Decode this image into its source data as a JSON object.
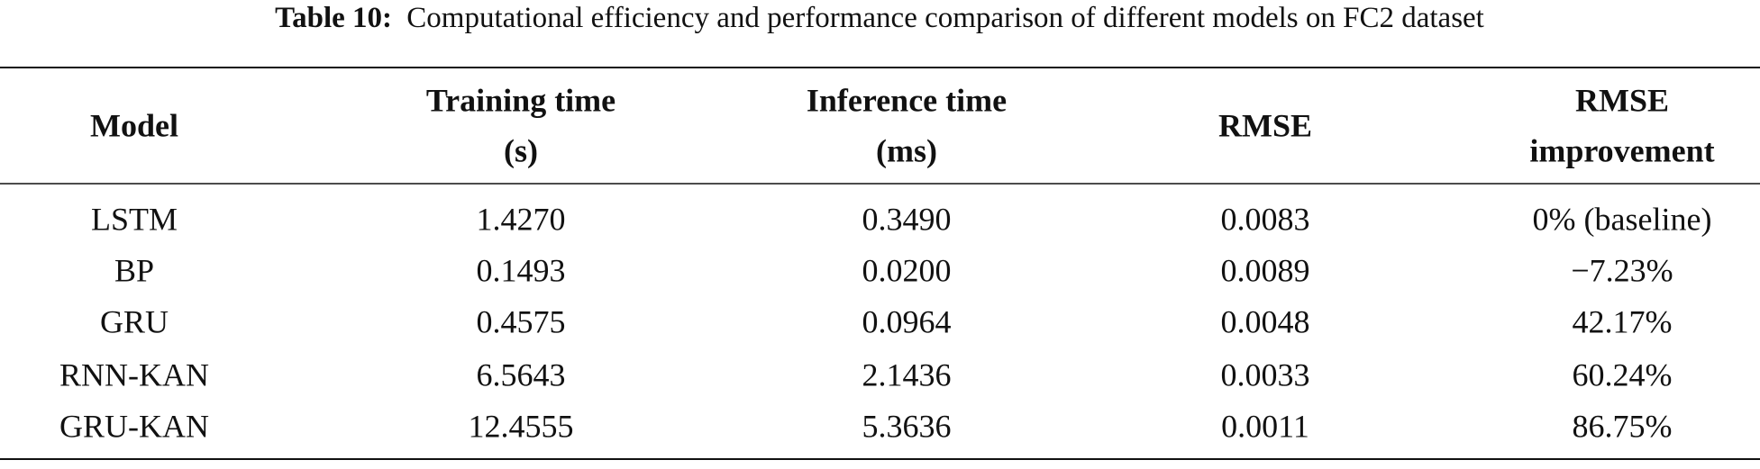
{
  "caption": {
    "label": "Table 10:",
    "text": "Computational efficiency and performance comparison of different models on FC2 dataset"
  },
  "table": {
    "header": [
      [
        "Model"
      ],
      [
        "Training time",
        "(s)"
      ],
      [
        "Inference time",
        "(ms)"
      ],
      [
        "RMSE"
      ],
      [
        "RMSE",
        "improvement"
      ]
    ],
    "rows": [
      [
        "LSTM",
        "1.4270",
        "0.3490",
        "0.0083",
        "0% (baseline)"
      ],
      [
        "BP",
        "0.1493",
        "0.0200",
        "0.0089",
        "−7.23%"
      ],
      [
        "GRU",
        "0.4575",
        "0.0964",
        "0.0048",
        "42.17%"
      ],
      [
        "RNN-KAN",
        "6.5643",
        "2.1436",
        "0.0033",
        "60.24%"
      ],
      [
        "GRU-KAN",
        "12.4555",
        "5.3636",
        "0.0011",
        "86.75%"
      ]
    ]
  }
}
